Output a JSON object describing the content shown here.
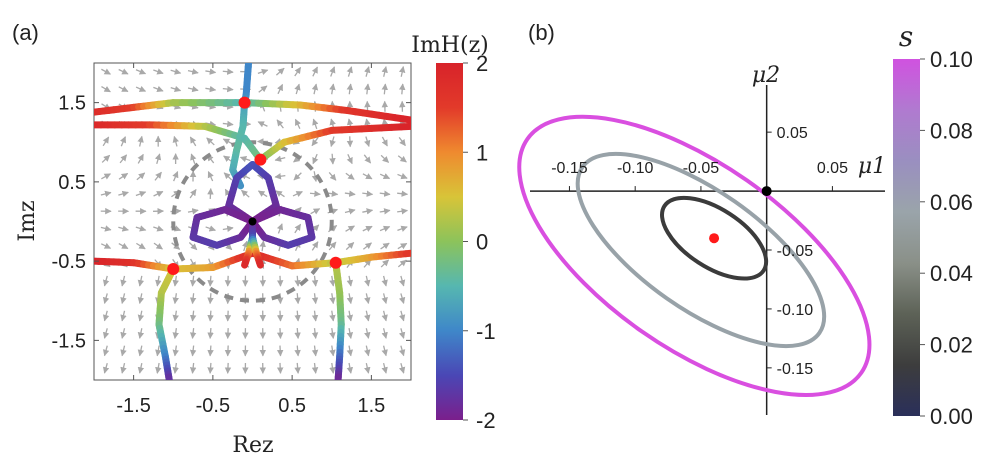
{
  "figure": {
    "panel_a_label": "(a)",
    "panel_b_label": "(b)"
  },
  "chart_data": [
    {
      "type": "streamplot",
      "panel": "(a)",
      "xlabel": "Rez",
      "ylabel": "Imz",
      "xlim": [
        -2,
        2
      ],
      "ylim": [
        -2,
        2
      ],
      "xticks": [
        "-1.5",
        "-0.5",
        "0.5",
        "1.5"
      ],
      "xtick_values": [
        -1.5,
        -0.5,
        0.5,
        1.5
      ],
      "yticks": [
        "1.5",
        "0.5",
        "-0.5",
        "-1.5"
      ],
      "ytick_values": [
        1.5,
        0.5,
        -0.5,
        -1.5
      ],
      "colorbar": {
        "label": "ImH(z)",
        "ticks": [
          "2",
          "1",
          "0",
          "-1",
          "-2"
        ],
        "tick_values": [
          2,
          1,
          0,
          -1,
          -2
        ],
        "range": [
          -2,
          2
        ],
        "colors": [
          "#7b1f8c",
          "#4a47b5",
          "#3f87c9",
          "#56b7b0",
          "#8cc35b",
          "#d8c438",
          "#ef8a2f",
          "#e23a2a",
          "#d8232a"
        ]
      },
      "critical_points": [
        {
          "x": -1.0,
          "y": -0.6,
          "color": "#ff1a1a"
        },
        {
          "x": 1.05,
          "y": -0.52,
          "color": "#ff1a1a"
        },
        {
          "x": -0.1,
          "y": 1.5,
          "color": "#ff1a1a"
        },
        {
          "x": 0.1,
          "y": 0.78,
          "color": "#ff1a1a"
        },
        {
          "x": 0.0,
          "y": 0.0,
          "color": "#000000"
        }
      ],
      "dashed_circle": {
        "center": [
          0,
          0
        ],
        "radius": 1.0,
        "color": "#8a8a8a"
      },
      "grid": false
    },
    {
      "type": "contour",
      "panel": "(b)",
      "xlabel": "μ1",
      "ylabel": "μ2",
      "xticks": [
        "-0.15",
        "-0.10",
        "-0.05",
        "0.05"
      ],
      "xtick_values": [
        -0.15,
        -0.1,
        -0.05,
        0.05
      ],
      "yticks": [
        "0.05",
        "-0.05",
        "-0.10",
        "-0.15"
      ],
      "ytick_values": [
        0.05,
        -0.05,
        -0.1,
        -0.15
      ],
      "xlim": [
        -0.18,
        0.09
      ],
      "ylim": [
        -0.19,
        0.09
      ],
      "series": [
        {
          "s": 0.1,
          "color": "#d94fe0",
          "center": [
            -0.055,
            -0.055
          ],
          "semi_axes": [
            0.155,
            0.07
          ],
          "angle_deg": -35
        },
        {
          "s": 0.04,
          "color": "#98a2a8",
          "center": [
            -0.05,
            -0.05
          ],
          "semi_axes": [
            0.11,
            0.045
          ],
          "angle_deg": -35
        },
        {
          "s": 0.01,
          "color": "#3b3b3b",
          "center": [
            -0.04,
            -0.04
          ],
          "semi_axes": [
            0.045,
            0.022
          ],
          "angle_deg": -33
        }
      ],
      "points": [
        {
          "x": -0.04,
          "y": -0.04,
          "color": "#ff1a1a"
        },
        {
          "x": 0.0,
          "y": 0.0,
          "color": "#000000"
        }
      ],
      "colorbar": {
        "label": "s",
        "ticks": [
          "0.10",
          "0.08",
          "0.06",
          "0.04",
          "0.02",
          "0.00"
        ],
        "tick_values": [
          0.1,
          0.08,
          0.06,
          0.04,
          0.02,
          0.0
        ],
        "range": [
          0,
          0.1
        ],
        "colors": [
          "#2a2f5a",
          "#3d3d3d",
          "#5d6257",
          "#8a9088",
          "#9aa4aa",
          "#9a8fc0",
          "#b07ad0",
          "#d052e0"
        ]
      },
      "grid": false
    }
  ]
}
